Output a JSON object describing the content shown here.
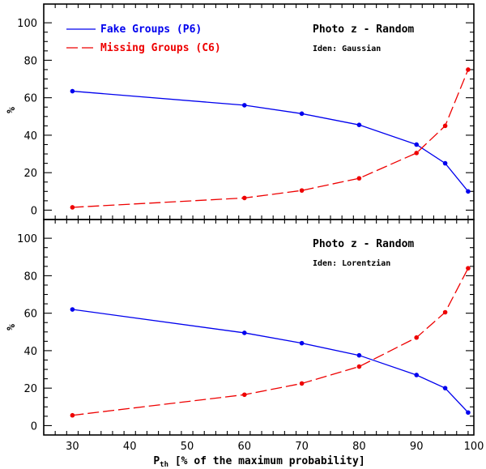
{
  "colors": {
    "fake": "#0000ee",
    "missing": "#ee0000"
  },
  "legend": [
    {
      "label": "Fake Groups (P6)",
      "style": "solid",
      "color": "#0000ee"
    },
    {
      "label": "Missing Groups (C6)",
      "style": "dashed",
      "color": "#ee0000"
    }
  ],
  "xaxis": {
    "label_main": "P",
    "label_sub": "th",
    "label_rest": " [% of the maximum probability]",
    "ticks": [
      "30",
      "40",
      "50",
      "60",
      "70",
      "80",
      "90",
      "100"
    ],
    "range": [
      25,
      100
    ]
  },
  "chart_data": [
    {
      "type": "line",
      "title": "Photo z - Random",
      "subtitle": "Iden: Gaussian",
      "ylabel": "%",
      "ylim": [
        -5,
        110
      ],
      "yticks": [
        "0",
        "20",
        "40",
        "60",
        "80",
        "100"
      ],
      "x": [
        30,
        60,
        70,
        80,
        90,
        95,
        99
      ],
      "series": [
        {
          "name": "Fake Groups (P6)",
          "values": [
            63.5,
            56,
            51.5,
            45.5,
            35,
            25,
            10
          ]
        },
        {
          "name": "Missing Groups (C6)",
          "values": [
            1.5,
            6.5,
            10.5,
            17,
            30.5,
            45,
            75
          ]
        }
      ]
    },
    {
      "type": "line",
      "title": "Photo z - Random",
      "subtitle": "Iden: Lorentzian",
      "ylabel": "%",
      "ylim": [
        -5,
        110
      ],
      "yticks": [
        "0",
        "20",
        "40",
        "60",
        "80",
        "100"
      ],
      "x": [
        30,
        60,
        70,
        80,
        90,
        95,
        99
      ],
      "series": [
        {
          "name": "Fake Groups (P6)",
          "values": [
            62,
            49.5,
            44,
            37.5,
            27,
            20,
            7
          ]
        },
        {
          "name": "Missing Groups (C6)",
          "values": [
            5.5,
            16.5,
            22.5,
            31.5,
            47,
            60.5,
            84
          ]
        }
      ]
    }
  ]
}
